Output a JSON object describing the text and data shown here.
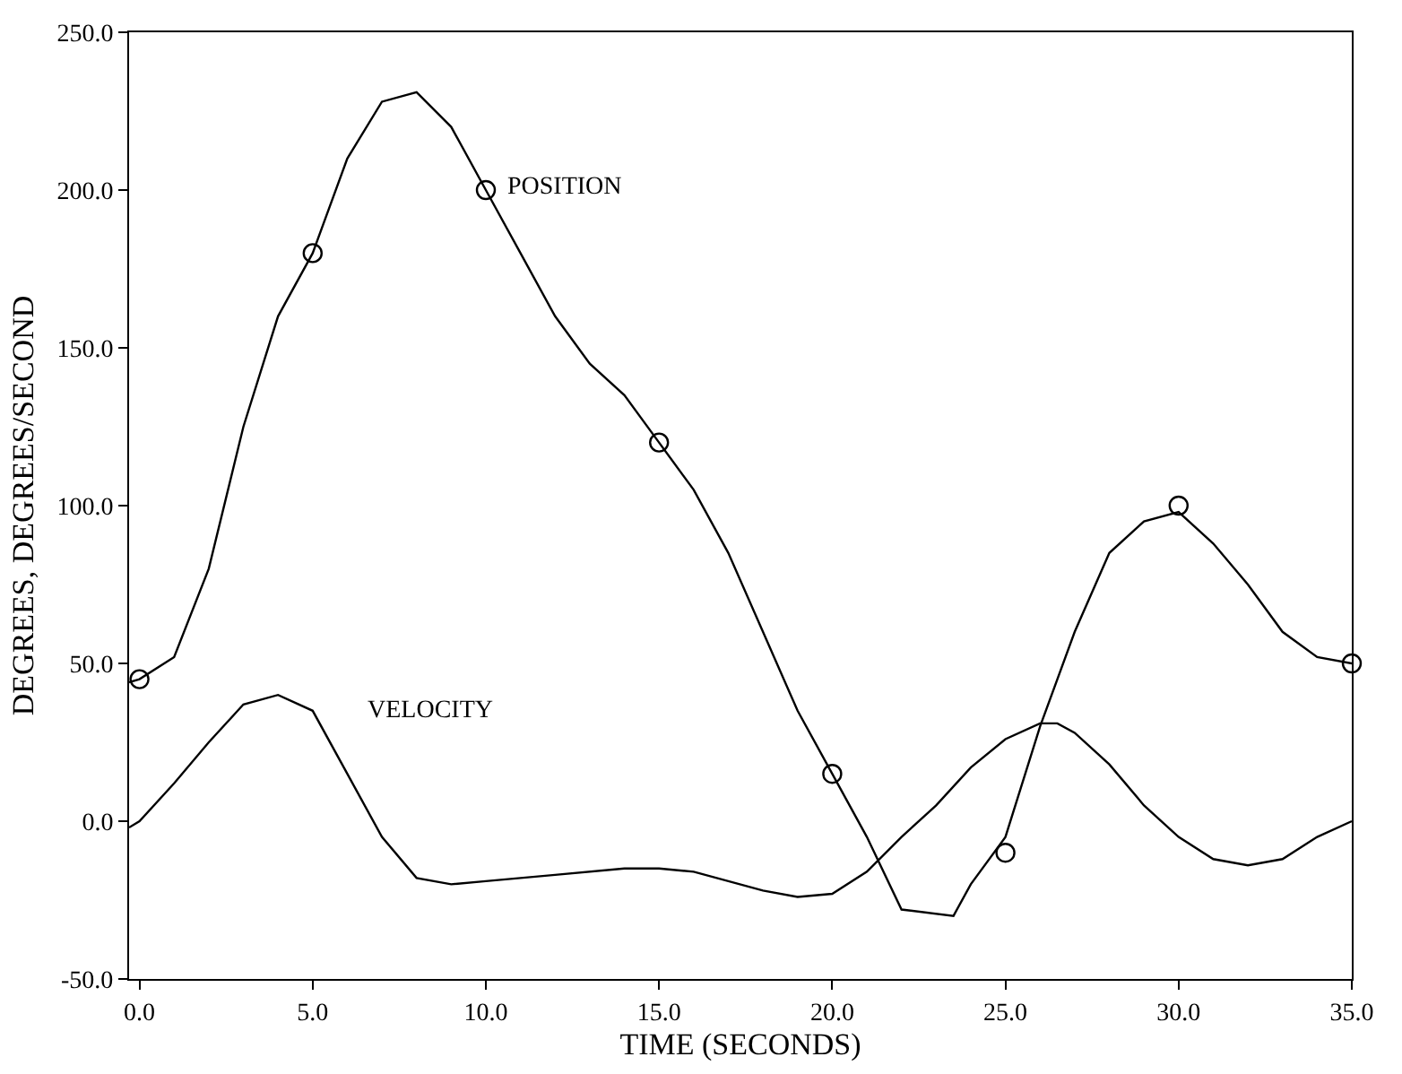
{
  "chart_data": {
    "type": "line",
    "xlabel": "TIME (SECONDS)",
    "ylabel": "DEGREES, DEGREES/SECOND",
    "xlim": [
      -0.3,
      35
    ],
    "ylim": [
      -50,
      250
    ],
    "xticks": [
      {
        "value": 0,
        "label": "0.0"
      },
      {
        "value": 5,
        "label": "5.0"
      },
      {
        "value": 10,
        "label": "10.0"
      },
      {
        "value": 15,
        "label": "15.0"
      },
      {
        "value": 20,
        "label": "20.0"
      },
      {
        "value": 25,
        "label": "25.0"
      },
      {
        "value": 30,
        "label": "30.0"
      },
      {
        "value": 35,
        "label": "35.0"
      }
    ],
    "yticks": [
      {
        "value": -50,
        "label": "-50.0"
      },
      {
        "value": 0,
        "label": "0.0"
      },
      {
        "value": 50,
        "label": "50.0"
      },
      {
        "value": 100,
        "label": "100.0"
      },
      {
        "value": 150,
        "label": "150.0"
      },
      {
        "value": 200,
        "label": "200.0"
      },
      {
        "value": 250,
        "label": "250.0"
      }
    ],
    "grid": false,
    "legend": false,
    "line_style": "solid",
    "marker": "none",
    "series": [
      {
        "name": "POSITION",
        "color": "#000000",
        "x": [
          -0.3,
          0,
          1,
          2,
          3,
          4,
          5,
          6,
          7,
          8,
          9,
          10,
          11,
          12,
          13,
          14,
          15,
          16,
          17,
          18,
          19,
          20,
          21,
          22,
          23.5,
          24,
          25,
          26,
          27,
          28,
          29,
          30,
          31,
          32,
          33,
          34,
          35
        ],
        "values": [
          44,
          45,
          52,
          80,
          125,
          160,
          180,
          210,
          228,
          231,
          220,
          200,
          180,
          160,
          145,
          135,
          120,
          105,
          85,
          60,
          35,
          15,
          -5,
          -28,
          -30,
          -20,
          -5,
          30,
          60,
          85,
          95,
          98,
          88,
          75,
          60,
          52,
          50
        ]
      },
      {
        "name": "VELOCITY",
        "color": "#000000",
        "x": [
          -0.3,
          0,
          1,
          2,
          3,
          4,
          5,
          6,
          7,
          8,
          9,
          10,
          12,
          14,
          15,
          16,
          18,
          19,
          20,
          21,
          22,
          23,
          24,
          25,
          26,
          26.5,
          27,
          28,
          29,
          30,
          31,
          32,
          33,
          34,
          35
        ],
        "values": [
          -2,
          0,
          12,
          25,
          37,
          40,
          35,
          15,
          -5,
          -18,
          -20,
          -19,
          -17,
          -15,
          -15,
          -16,
          -22,
          -24,
          -23,
          -16,
          -5,
          5,
          17,
          26,
          31,
          31,
          28,
          18,
          5,
          -5,
          -12,
          -14,
          -12,
          -5,
          0
        ]
      },
      {
        "type": "scatter",
        "marker": "circle",
        "color": "#000000",
        "x": [
          0,
          5,
          10,
          15,
          20,
          25,
          30,
          35
        ],
        "values": [
          45,
          180,
          200,
          120,
          15,
          -10,
          100,
          50
        ]
      }
    ]
  }
}
